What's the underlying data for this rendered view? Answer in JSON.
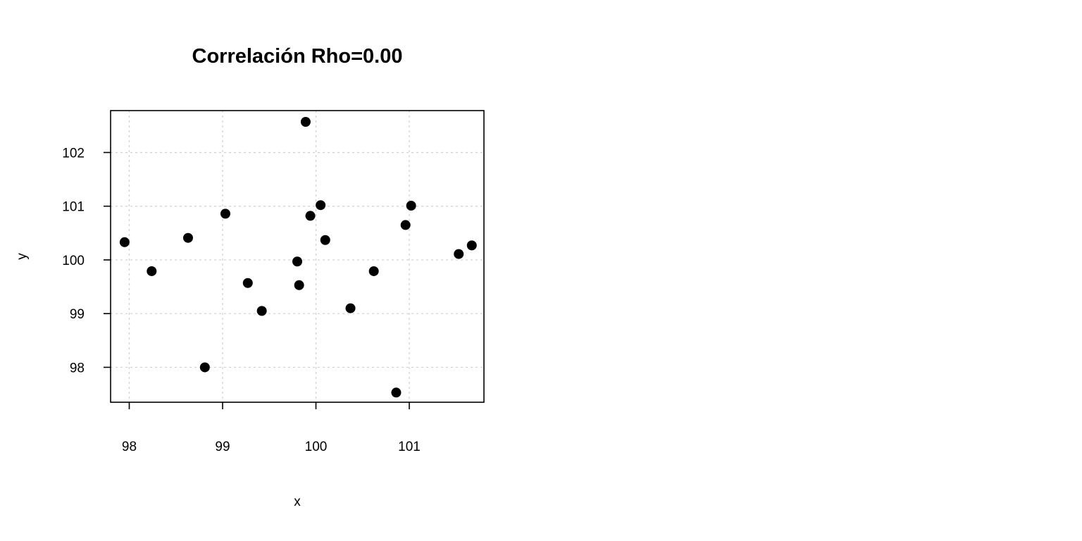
{
  "chart_data": {
    "type": "scatter",
    "title": "Correlación Rho=0.00",
    "xlabel": "x",
    "ylabel": "y",
    "xlim": [
      97.8,
      101.8
    ],
    "ylim": [
      97.35,
      102.78
    ],
    "xticks": [
      98,
      99,
      100,
      101
    ],
    "yticks": [
      98,
      99,
      100,
      101,
      102
    ],
    "grid": true,
    "legend": "none",
    "point_color": "#000000",
    "points": [
      {
        "x": 97.95,
        "y": 100.33
      },
      {
        "x": 98.24,
        "y": 99.79
      },
      {
        "x": 98.63,
        "y": 100.41
      },
      {
        "x": 98.81,
        "y": 98.0
      },
      {
        "x": 99.03,
        "y": 100.86
      },
      {
        "x": 99.27,
        "y": 99.57
      },
      {
        "x": 99.42,
        "y": 99.05
      },
      {
        "x": 99.8,
        "y": 99.97
      },
      {
        "x": 99.82,
        "y": 99.53
      },
      {
        "x": 99.89,
        "y": 102.57
      },
      {
        "x": 99.94,
        "y": 100.82
      },
      {
        "x": 100.05,
        "y": 101.02
      },
      {
        "x": 100.1,
        "y": 100.37
      },
      {
        "x": 100.37,
        "y": 99.1
      },
      {
        "x": 100.62,
        "y": 99.79
      },
      {
        "x": 100.86,
        "y": 97.53
      },
      {
        "x": 100.96,
        "y": 100.65
      },
      {
        "x": 101.02,
        "y": 101.01
      },
      {
        "x": 101.53,
        "y": 100.11
      },
      {
        "x": 101.67,
        "y": 100.27
      }
    ]
  }
}
